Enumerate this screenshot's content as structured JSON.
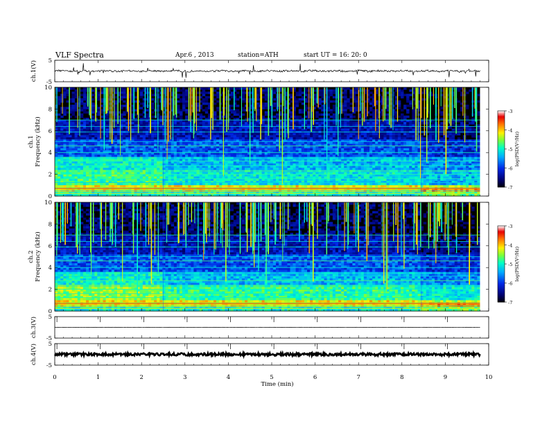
{
  "header": {
    "title": "VLF  Spectra",
    "date": "Apr.6  , 2013",
    "station": "station=ATH",
    "start": "start  UT  =   16: 20: 0"
  },
  "chart_data": [
    {
      "type": "line",
      "name": "ch1-waveform",
      "ylabel": "ch.1(V)",
      "ylim": [
        -5,
        5
      ],
      "y_ticks": [
        "5",
        "-5"
      ],
      "baseline": 0,
      "x_end_min": 9.8
    },
    {
      "type": "heatmap",
      "name": "ch1-spectrogram",
      "ylabel": "ch.1\nFrequency  (kHz)",
      "ylim": [
        0,
        10
      ],
      "y_ticks": [
        "0",
        "2",
        "4",
        "6",
        "8",
        "10"
      ],
      "x_end_min": 9.8,
      "colorbar": {
        "label": "log(PSD(V²/Hz)",
        "ticks": [
          "-3",
          "-4",
          "-5",
          "-6",
          "-7"
        ],
        "range": [
          -7,
          -3
        ]
      },
      "segments_min": [
        0,
        2.5,
        8.45,
        9.8
      ]
    },
    {
      "type": "heatmap",
      "name": "ch2-spectrogram",
      "ylabel": "ch.2\nFrequency  (kHz)",
      "ylim": [
        0,
        10
      ],
      "y_ticks": [
        "0",
        "2",
        "4",
        "6",
        "8",
        "10"
      ],
      "x_end_min": 9.8,
      "colorbar": {
        "label": "log(PSD(V²/Hz)",
        "ticks": [
          "-3",
          "-4",
          "-5",
          "-6",
          "-7"
        ],
        "range": [
          -7,
          -3
        ]
      },
      "segments_min": [
        0,
        2.5,
        8.45,
        9.8
      ]
    },
    {
      "type": "line",
      "name": "ch3-waveform",
      "ylabel": "ch.3(V)",
      "ylim": [
        -5,
        5
      ],
      "y_ticks": [
        "5",
        "-5"
      ],
      "baseline": 0,
      "x_end_min": 9.8
    },
    {
      "type": "line",
      "name": "ch4-waveform",
      "ylabel": "ch.4(V)",
      "ylim": [
        -5,
        5
      ],
      "y_ticks": [
        "5",
        "-5"
      ],
      "baseline": 0,
      "x_end_min": 9.8
    }
  ],
  "x_axis": {
    "label": "Time  (min)",
    "range": [
      0,
      10
    ],
    "ticks": [
      "0",
      "1",
      "2",
      "3",
      "4",
      "5",
      "6",
      "7",
      "8",
      "9",
      "10"
    ]
  }
}
